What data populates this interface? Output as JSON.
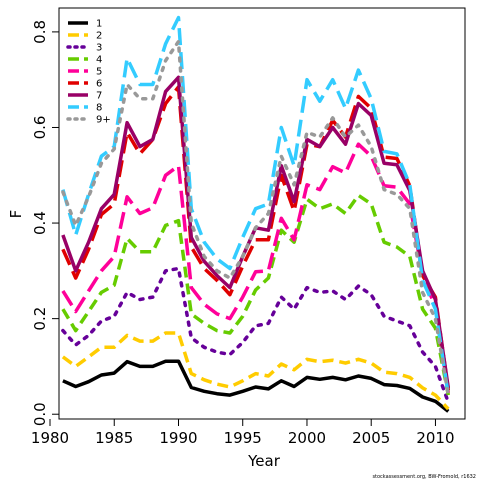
{
  "chart_data": {
    "type": "line",
    "title": "",
    "xlabel": "Year",
    "ylabel": "F",
    "xlim": [
      1980.7,
      2012.3
    ],
    "ylim": [
      -0.01,
      0.85
    ],
    "xticks": [
      1980,
      1985,
      1990,
      1995,
      2000,
      2005,
      2010
    ],
    "yticks": [
      0.0,
      0.2,
      0.4,
      0.6,
      0.8
    ],
    "ytick_labels": [
      "0.0",
      "0.2",
      "0.4",
      "0.6",
      "0.8"
    ],
    "legend_position": "top-left",
    "grid": false,
    "x": [
      1981,
      1982,
      1983,
      1984,
      1985,
      1986,
      1987,
      1988,
      1989,
      1990,
      1991,
      1992,
      1993,
      1994,
      1995,
      1996,
      1997,
      1998,
      1999,
      2000,
      2001,
      2002,
      2003,
      2004,
      2005,
      2006,
      2007,
      2008,
      2009,
      2010,
      2011
    ],
    "series": [
      {
        "name": "1",
        "color": "#000000",
        "dash": "solid",
        "values": [
          0.07,
          0.058,
          0.068,
          0.082,
          0.086,
          0.11,
          0.1,
          0.1,
          0.111,
          0.111,
          0.056,
          0.048,
          0.043,
          0.04,
          0.048,
          0.057,
          0.053,
          0.07,
          0.058,
          0.077,
          0.073,
          0.077,
          0.072,
          0.08,
          0.075,
          0.062,
          0.06,
          0.054,
          0.036,
          0.027,
          0.006
        ]
      },
      {
        "name": "2",
        "color": "#FFCC00",
        "dash": "dashed",
        "values": [
          0.12,
          0.1,
          0.12,
          0.14,
          0.14,
          0.165,
          0.153,
          0.153,
          0.17,
          0.17,
          0.085,
          0.072,
          0.063,
          0.057,
          0.07,
          0.085,
          0.08,
          0.105,
          0.093,
          0.115,
          0.11,
          0.113,
          0.107,
          0.115,
          0.107,
          0.088,
          0.085,
          0.077,
          0.055,
          0.04,
          0.011
        ]
      },
      {
        "name": "3",
        "color": "#660099",
        "dash": "dotted",
        "values": [
          0.175,
          0.145,
          0.165,
          0.195,
          0.205,
          0.255,
          0.24,
          0.245,
          0.3,
          0.305,
          0.16,
          0.14,
          0.13,
          0.125,
          0.15,
          0.185,
          0.19,
          0.245,
          0.22,
          0.265,
          0.255,
          0.258,
          0.24,
          0.268,
          0.25,
          0.205,
          0.195,
          0.185,
          0.13,
          0.1,
          0.025
        ]
      },
      {
        "name": "4",
        "color": "#66CC00",
        "dash": "dashed",
        "values": [
          0.22,
          0.175,
          0.215,
          0.255,
          0.27,
          0.368,
          0.34,
          0.34,
          0.395,
          0.405,
          0.21,
          0.19,
          0.175,
          0.17,
          0.205,
          0.26,
          0.285,
          0.385,
          0.36,
          0.45,
          0.43,
          0.44,
          0.42,
          0.458,
          0.44,
          0.36,
          0.35,
          0.33,
          0.22,
          0.18,
          0.04
        ]
      },
      {
        "name": "5",
        "color": "#FF0099",
        "dash": "long-dash",
        "values": [
          0.258,
          0.215,
          0.258,
          0.3,
          0.33,
          0.455,
          0.42,
          0.432,
          0.5,
          0.52,
          0.265,
          0.23,
          0.21,
          0.2,
          0.245,
          0.298,
          0.3,
          0.41,
          0.365,
          0.48,
          0.47,
          0.518,
          0.505,
          0.565,
          0.54,
          0.478,
          0.475,
          0.44,
          0.29,
          0.225,
          0.045
        ]
      },
      {
        "name": "6",
        "color": "#E00000",
        "dash": "long-dash",
        "values": [
          0.345,
          0.285,
          0.345,
          0.418,
          0.44,
          0.59,
          0.545,
          0.575,
          0.65,
          0.685,
          0.35,
          0.305,
          0.28,
          0.25,
          0.31,
          0.365,
          0.365,
          0.5,
          0.425,
          0.565,
          0.56,
          0.615,
          0.58,
          0.665,
          0.64,
          0.538,
          0.535,
          0.478,
          0.29,
          0.245,
          0.05
        ]
      },
      {
        "name": "7",
        "color": "#990066",
        "dash": "solid",
        "values": [
          0.375,
          0.3,
          0.36,
          0.43,
          0.46,
          0.61,
          0.56,
          0.575,
          0.675,
          0.705,
          0.37,
          0.32,
          0.29,
          0.265,
          0.33,
          0.39,
          0.385,
          0.52,
          0.445,
          0.575,
          0.56,
          0.6,
          0.565,
          0.65,
          0.625,
          0.525,
          0.522,
          0.468,
          0.3,
          0.24,
          0.055
        ]
      },
      {
        "name": "8",
        "color": "#33CCFF",
        "dash": "long-dash",
        "values": [
          0.47,
          0.375,
          0.46,
          0.54,
          0.56,
          0.745,
          0.69,
          0.69,
          0.775,
          0.83,
          0.43,
          0.36,
          0.325,
          0.305,
          0.37,
          0.43,
          0.44,
          0.6,
          0.52,
          0.7,
          0.655,
          0.7,
          0.64,
          0.72,
          0.66,
          0.55,
          0.545,
          0.48,
          0.28,
          0.22,
          0.04
        ]
      },
      {
        "name": "9+",
        "color": "#999999",
        "dash": "dotted",
        "values": [
          0.465,
          0.395,
          0.455,
          0.525,
          0.555,
          0.69,
          0.66,
          0.66,
          0.74,
          0.78,
          0.4,
          0.33,
          0.3,
          0.285,
          0.33,
          0.39,
          0.42,
          0.54,
          0.48,
          0.59,
          0.58,
          0.62,
          0.58,
          0.605,
          0.56,
          0.47,
          0.46,
          0.43,
          0.255,
          0.2,
          0.04
        ]
      }
    ],
    "footnote": "stockassessment.org, BW-Fromold, r1632"
  }
}
